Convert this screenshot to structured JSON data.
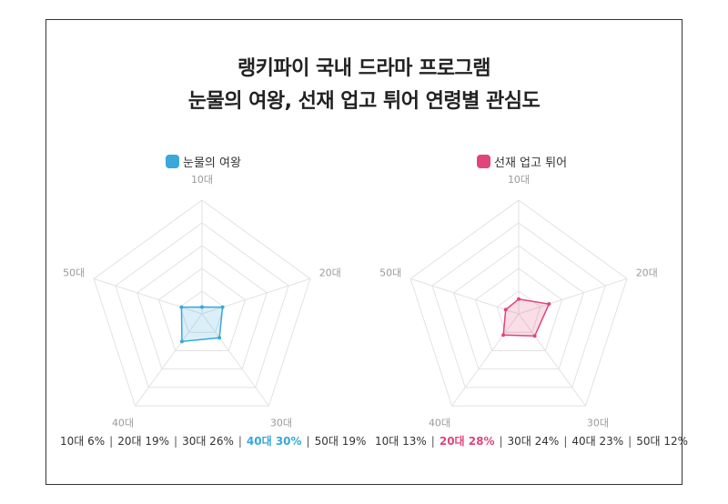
{
  "title_line1": "랭키파이 국내 드라마 프로그램",
  "title_line2": "눈물의 여왕, 선재 업고 튀어 연령별 관심도",
  "chart_data": [
    {
      "type": "radar",
      "series_name": "눈물의 여왕",
      "color": "#3aa8d8",
      "axes": [
        "10대",
        "20대",
        "30대",
        "40대",
        "50대"
      ],
      "values": [
        6,
        19,
        26,
        30,
        19
      ],
      "unit": "%",
      "rmax": 100,
      "grid_levels": 5,
      "highlight_index": 3
    },
    {
      "type": "radar",
      "series_name": "선재 업고 튀어",
      "color": "#e0457b",
      "axes": [
        "10대",
        "20대",
        "30대",
        "40대",
        "50대"
      ],
      "values": [
        13,
        28,
        24,
        23,
        12
      ],
      "unit": "%",
      "rmax": 100,
      "grid_levels": 5,
      "highlight_index": 1
    }
  ]
}
